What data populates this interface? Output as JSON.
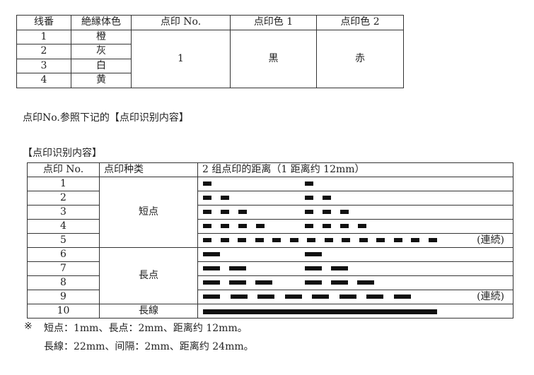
{
  "wire_table": {
    "headers": [
      "线番",
      "絶縁体色",
      "点印 No.",
      "点印色 1",
      "点印色 2"
    ],
    "rows": [
      {
        "no": "1",
        "color": "橙"
      },
      {
        "no": "2",
        "color": "灰"
      },
      {
        "no": "3",
        "color": "白"
      },
      {
        "no": "4",
        "color": "黄"
      }
    ],
    "dot_no": "1",
    "dot_color1": "黒",
    "dot_color2": "赤"
  },
  "note": "点印No.参照下记的【点印识别内容】",
  "section_title": "【点印识别内容】",
  "dot_table": {
    "headers": [
      "点印 No.",
      "点印种类",
      "2 组点印的距离（1 距离约 12mm）"
    ],
    "types": [
      "短点",
      "長点",
      "長線"
    ],
    "continuous_label": "(連続)",
    "rows": [
      {
        "no": "1",
        "kind": "short",
        "count": 1,
        "continuous": false
      },
      {
        "no": "2",
        "kind": "short",
        "count": 2,
        "continuous": false
      },
      {
        "no": "3",
        "kind": "short",
        "count": 3,
        "continuous": false
      },
      {
        "no": "4",
        "kind": "short",
        "count": 4,
        "continuous": false
      },
      {
        "no": "5",
        "kind": "short",
        "count": 14,
        "continuous": true
      },
      {
        "no": "6",
        "kind": "long",
        "count": 1,
        "continuous": false
      },
      {
        "no": "7",
        "kind": "long",
        "count": 2,
        "continuous": false
      },
      {
        "no": "8",
        "kind": "long",
        "count": 3,
        "continuous": false
      },
      {
        "no": "9",
        "kind": "long",
        "count": 8,
        "continuous": true
      },
      {
        "no": "10",
        "kind": "line",
        "count": 1,
        "continuous": false
      }
    ]
  },
  "footnote": {
    "mark": "※",
    "line1": "短点：1mm、長点：2mm、距离约 12mm。",
    "line2": "長線：22mm、间隔：2mm、距离约 24mm。"
  }
}
